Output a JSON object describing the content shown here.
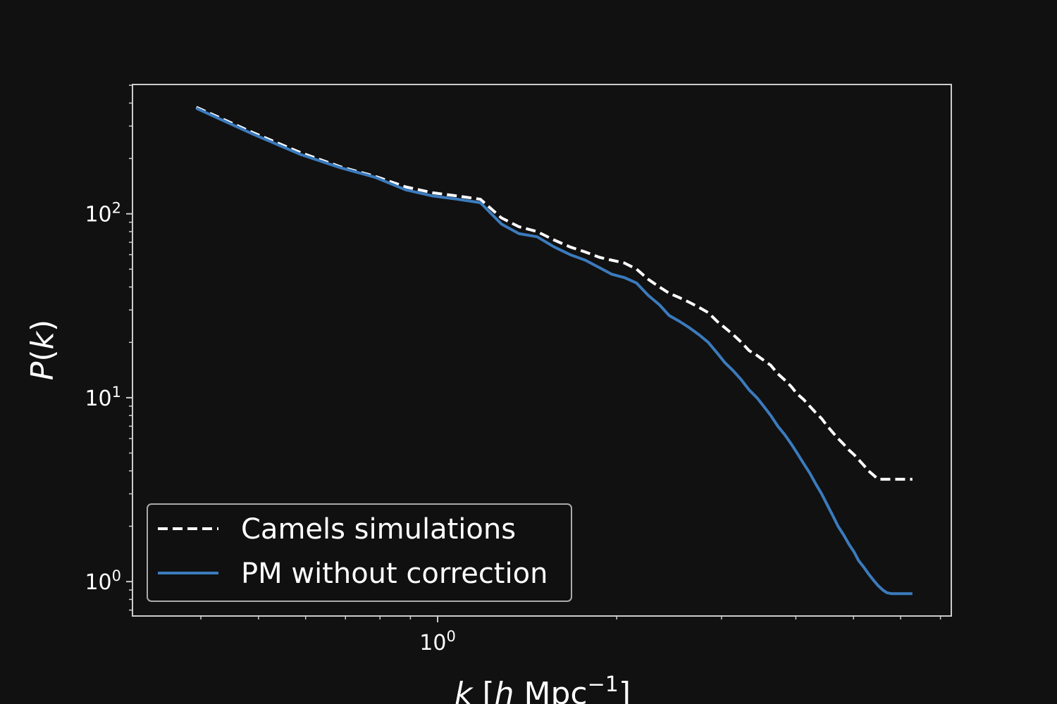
{
  "chart_data": {
    "type": "line",
    "title": "",
    "xlabel": {
      "var": "k",
      "open": " [",
      "h": "h",
      "unit": " Mpc",
      "exp": "−1",
      "close": "]"
    },
    "ylabel": {
      "func": "P",
      "open": "(",
      "var": "k",
      "close": ")"
    },
    "xscale": "log",
    "yscale": "log",
    "xlim": [
      0.307,
      7.3
    ],
    "ylim": [
      0.65,
      505
    ],
    "x_ticks": [
      {
        "base": "10",
        "exp": "0",
        "value": 1
      }
    ],
    "y_ticks": [
      {
        "base": "10",
        "exp": "0",
        "value": 1
      },
      {
        "base": "10",
        "exp": "1",
        "value": 10
      },
      {
        "base": "10",
        "exp": "2",
        "value": 100
      }
    ],
    "grid": false,
    "legend_position": "lower-left",
    "series": [
      {
        "name": "Camels simulations",
        "style": "dashed",
        "color": "#ffffff",
        "x": [
          0.393,
          0.491,
          0.589,
          0.687,
          0.785,
          0.884,
          0.982,
          1.08,
          1.18,
          1.28,
          1.37,
          1.47,
          1.57,
          1.67,
          1.77,
          1.87,
          1.96,
          2.06,
          2.16,
          2.26,
          2.36,
          2.45,
          2.55,
          2.65,
          2.75,
          2.85,
          2.95,
          3.04,
          3.14,
          3.24,
          3.34,
          3.44,
          3.53,
          3.63,
          3.73,
          3.83,
          3.93,
          4.02,
          4.12,
          4.22,
          4.32,
          4.42,
          4.52,
          4.61,
          4.71,
          4.81,
          4.91,
          5.01,
          5.1,
          5.2,
          5.3,
          5.4,
          5.5,
          5.6,
          5.69,
          5.79,
          5.89,
          5.99,
          6.09,
          6.18,
          6.28
        ],
        "y": [
          380,
          275,
          215,
          180,
          160,
          140,
          130,
          125,
          120,
          95,
          85,
          80,
          72,
          66,
          62,
          58,
          56,
          54,
          50,
          44,
          40,
          37,
          35,
          33,
          31,
          29,
          26,
          24,
          22,
          20,
          18,
          17,
          16,
          15,
          13.5,
          12.5,
          11.5,
          10.5,
          9.8,
          9.0,
          8.3,
          7.7,
          7.0,
          6.5,
          6.0,
          5.6,
          5.2,
          4.9,
          4.6,
          4.3,
          4.0,
          3.8,
          3.6,
          3.6,
          3.6,
          3.6,
          3.6,
          3.6,
          3.6,
          3.6,
          3.6
        ]
      },
      {
        "name": "PM without correction",
        "style": "solid",
        "color": "#3b7bbd",
        "x": [
          0.393,
          0.491,
          0.589,
          0.687,
          0.785,
          0.884,
          0.982,
          1.08,
          1.18,
          1.28,
          1.37,
          1.47,
          1.57,
          1.67,
          1.77,
          1.87,
          1.96,
          2.06,
          2.16,
          2.26,
          2.36,
          2.45,
          2.55,
          2.65,
          2.75,
          2.85,
          2.95,
          3.04,
          3.14,
          3.24,
          3.34,
          3.44,
          3.53,
          3.63,
          3.73,
          3.83,
          3.93,
          4.02,
          4.12,
          4.22,
          4.32,
          4.42,
          4.52,
          4.61,
          4.71,
          4.81,
          4.91,
          5.01,
          5.1,
          5.2,
          5.3,
          5.4,
          5.5,
          5.6,
          5.69,
          5.79,
          5.89,
          5.99,
          6.09,
          6.18,
          6.28
        ],
        "y": [
          375,
          270,
          210,
          178,
          158,
          135,
          125,
          120,
          115,
          88,
          78,
          75,
          66,
          60,
          56,
          51,
          47,
          45,
          42,
          36,
          32,
          28,
          26,
          24,
          22,
          20,
          17.5,
          15.5,
          14,
          12.5,
          11,
          10,
          9,
          8,
          7,
          6.3,
          5.6,
          5.0,
          4.4,
          3.9,
          3.4,
          3.0,
          2.6,
          2.3,
          2.0,
          1.8,
          1.6,
          1.45,
          1.3,
          1.2,
          1.1,
          1.02,
          0.95,
          0.9,
          0.87,
          0.86,
          0.86,
          0.86,
          0.86,
          0.86,
          0.86
        ]
      }
    ]
  }
}
